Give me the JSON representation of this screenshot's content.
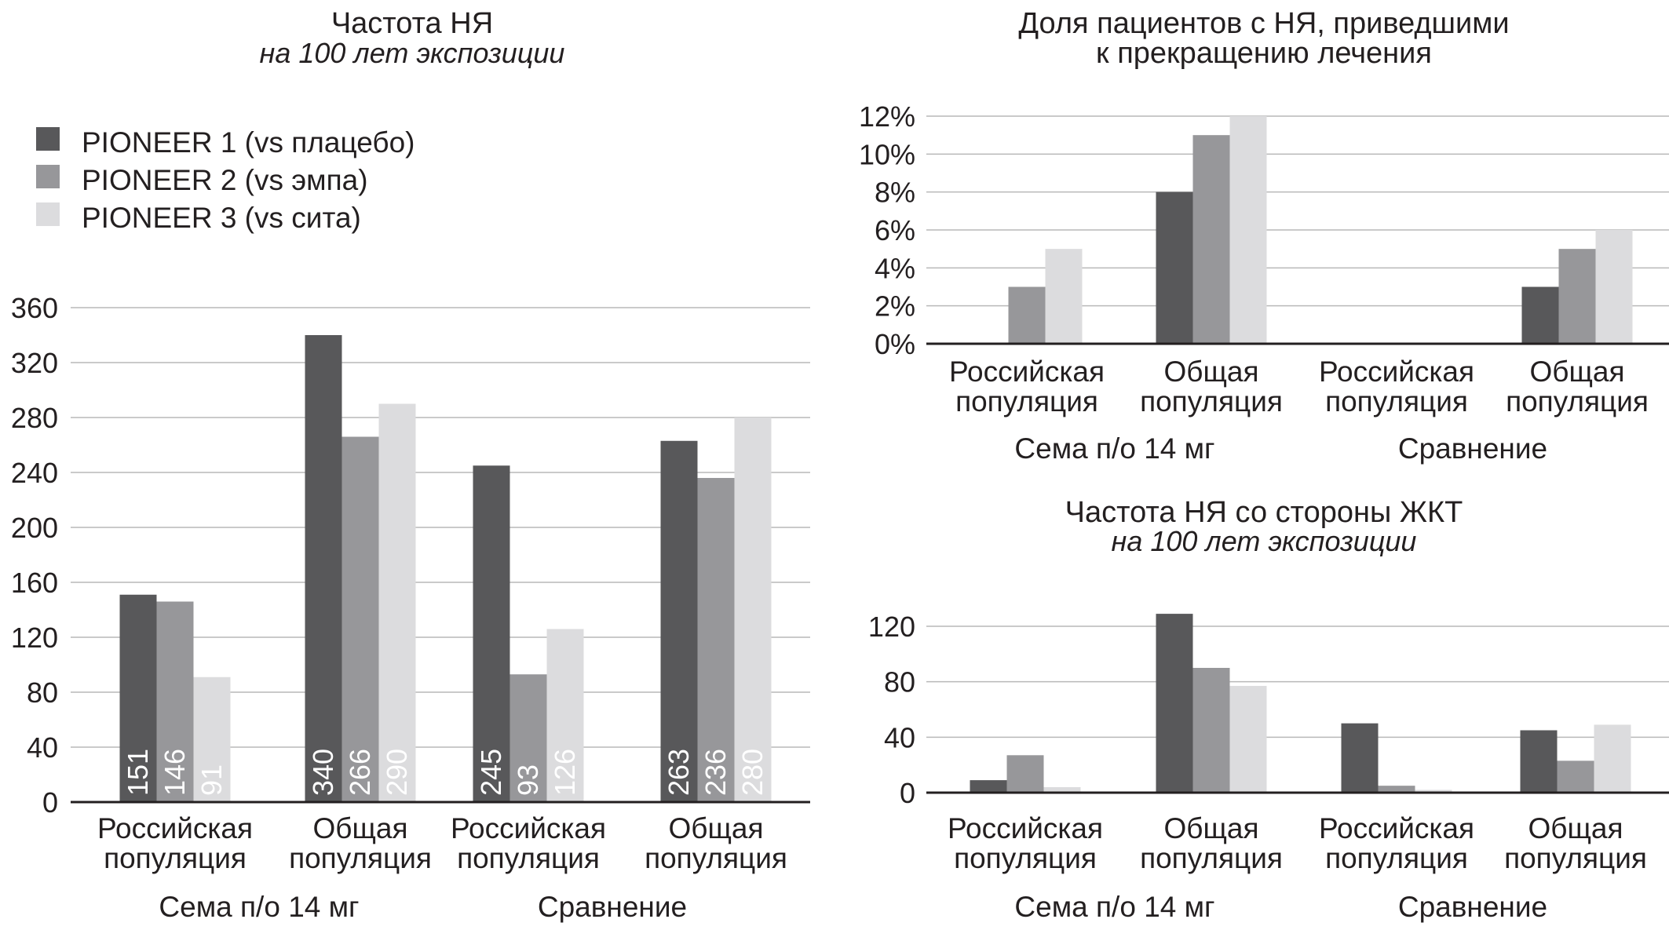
{
  "legend": [
    {
      "label": "PIONEER 1 (vs плацебо)",
      "color": "#58585a"
    },
    {
      "label": "PIONEER 2 (vs эмпа)",
      "color": "#97979a"
    },
    {
      "label": "PIONEER 3 (vs сита)",
      "color": "#dcdcde"
    }
  ],
  "chart_data": [
    {
      "type": "bar",
      "title": "Частота НЯ",
      "subtitle": "на 100 лет экспозиции",
      "categories": [
        "Российская популяция",
        "Общая популяция",
        "Российская популяция",
        "Общая популяция"
      ],
      "category_lines": [
        [
          "Российская",
          "популяция"
        ],
        [
          "Общая",
          "популяция"
        ],
        [
          "Российская",
          "популяция"
        ],
        [
          "Общая",
          "популяция"
        ]
      ],
      "groups": [
        "Сема п/о 14 мг",
        "Сравнение"
      ],
      "series": [
        {
          "name": "PIONEER 1 (vs плацебо)",
          "values": [
            151,
            340,
            245,
            263
          ]
        },
        {
          "name": "PIONEER 2 (vs эмпа)",
          "values": [
            146,
            266,
            93,
            236
          ]
        },
        {
          "name": "PIONEER 3 (vs сита)",
          "values": [
            91,
            290,
            126,
            280
          ]
        }
      ],
      "data_labels": [
        [
          "151",
          "340",
          "245",
          "263"
        ],
        [
          "146",
          "266",
          "93",
          "236"
        ],
        [
          "91",
          "290",
          "126",
          "280"
        ]
      ],
      "ylim": [
        0,
        360
      ],
      "yticks": [
        0,
        40,
        80,
        120,
        160,
        200,
        240,
        280,
        320,
        360
      ],
      "ytick_labels": [
        "0",
        "40",
        "80",
        "120",
        "160",
        "200",
        "240",
        "280",
        "320",
        "360"
      ],
      "grid": true,
      "legend_position": "top-left"
    },
    {
      "type": "bar",
      "title_lines": [
        "Доля пациентов с НЯ, приведшими",
        "к прекращению лечения"
      ],
      "categories": [
        "Российская популяция",
        "Общая популяция",
        "Российская популяция",
        "Общая популяция"
      ],
      "category_lines": [
        [
          "Российская",
          "популяция"
        ],
        [
          "Общая",
          "популяция"
        ],
        [
          "Российская",
          "популяция"
        ],
        [
          "Общая",
          "популяция"
        ]
      ],
      "groups": [
        "Сема п/о 14 мг",
        "Сравнение"
      ],
      "series": [
        {
          "name": "PIONEER 1 (vs плацебо)",
          "values": [
            0,
            8,
            0,
            3
          ]
        },
        {
          "name": "PIONEER 2 (vs эмпа)",
          "values": [
            3,
            11,
            0,
            5
          ]
        },
        {
          "name": "PIONEER 3 (vs сита)",
          "values": [
            5,
            12,
            0,
            6
          ]
        }
      ],
      "ylim": [
        0,
        12
      ],
      "yticks": [
        0,
        2,
        4,
        6,
        8,
        10,
        12
      ],
      "ytick_labels": [
        "0%",
        "2%",
        "4%",
        "6%",
        "8%",
        "10%",
        "12%"
      ],
      "grid": true
    },
    {
      "type": "bar",
      "title": "Частота НЯ со стороны ЖКТ",
      "subtitle": "на 100 лет экспозиции",
      "categories": [
        "Российская популяция",
        "Общая популяция",
        "Российская популяция",
        "Общая популяция"
      ],
      "category_lines": [
        [
          "Российская",
          "популяция"
        ],
        [
          "Общая",
          "популяция"
        ],
        [
          "Российская",
          "популяция"
        ],
        [
          "Общая",
          "популяция"
        ]
      ],
      "groups": [
        "Сема п/о 14 мг",
        "Сравнение"
      ],
      "series": [
        {
          "name": "PIONEER 1 (vs плацебо)",
          "values": [
            9,
            129,
            50,
            45
          ]
        },
        {
          "name": "PIONEER 2 (vs эмпа)",
          "values": [
            27,
            90,
            5,
            23
          ]
        },
        {
          "name": "PIONEER 3 (vs сита)",
          "values": [
            4,
            77,
            2,
            49
          ]
        }
      ],
      "ylim": [
        0,
        120
      ],
      "yticks": [
        0,
        40,
        80,
        120
      ],
      "ytick_labels": [
        "0",
        "40",
        "80",
        "120"
      ],
      "grid": true
    }
  ]
}
